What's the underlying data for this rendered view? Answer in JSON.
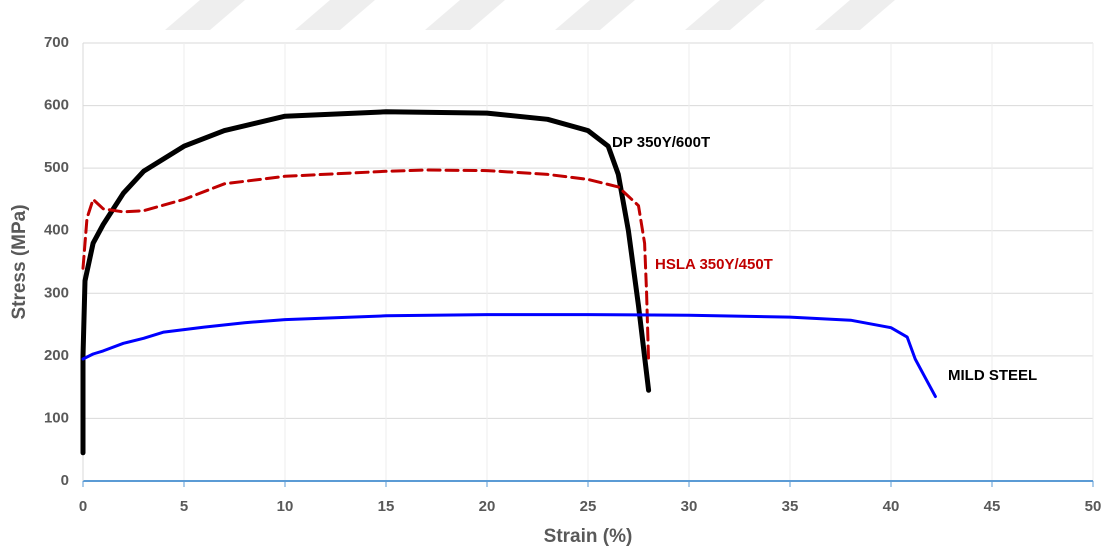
{
  "chart_data": {
    "type": "line",
    "xlabel": "Strain (%)",
    "ylabel": "Stress (MPa)",
    "xlim": [
      0,
      50
    ],
    "xticks": [
      0,
      5,
      10,
      15,
      20,
      25,
      30,
      35,
      40,
      45,
      50
    ],
    "ylim": [
      0,
      700
    ],
    "yticks": [
      0,
      100,
      200,
      300,
      400,
      500,
      600,
      700
    ],
    "grid": true,
    "series": [
      {
        "name": "DP 350Y/600T",
        "color": "#000000",
        "dash": false,
        "x": [
          0,
          0,
          0.1,
          0.5,
          1,
          2,
          3,
          5,
          7,
          10,
          15,
          20,
          23,
          25,
          26,
          26.5,
          27,
          27.5,
          28
        ],
        "values": [
          45,
          200,
          320,
          380,
          410,
          460,
          495,
          535,
          560,
          583,
          590,
          588,
          578,
          560,
          535,
          490,
          400,
          280,
          145
        ]
      },
      {
        "name": "HSLA 350Y/450T",
        "color": "#c00000",
        "dash": true,
        "x": [
          0,
          0.2,
          0.5,
          1,
          2,
          3,
          5,
          7,
          10,
          15,
          17,
          20,
          23,
          25,
          26.5,
          27.5,
          27.8,
          27.9,
          28
        ],
        "values": [
          340,
          420,
          450,
          435,
          430,
          432,
          450,
          475,
          487,
          495,
          497,
          496,
          490,
          482,
          470,
          440,
          380,
          300,
          190
        ]
      },
      {
        "name": "MILD STEEL",
        "color": "#0000ff",
        "dash": false,
        "x": [
          0,
          0.5,
          1,
          2,
          3,
          4,
          6,
          8,
          10,
          15,
          20,
          25,
          30,
          35,
          38,
          40,
          40.8,
          41.2,
          41.7,
          42.2
        ],
        "values": [
          195,
          203,
          208,
          220,
          228,
          238,
          246,
          253,
          258,
          264,
          266,
          266,
          265,
          262,
          257,
          245,
          230,
          195,
          165,
          135
        ]
      }
    ]
  }
}
